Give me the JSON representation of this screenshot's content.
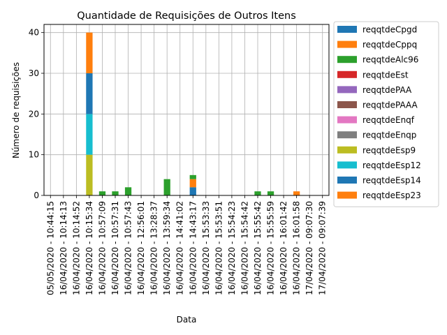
{
  "chart_data": {
    "type": "bar",
    "stacked": true,
    "title": "Quantidade de Requisições de Outros Itens",
    "xlabel": "Data",
    "ylabel": "Número de requisições",
    "ylim": [
      0,
      42
    ],
    "yticks": [
      0,
      10,
      20,
      30,
      40
    ],
    "grid": true,
    "legend_position": "outside-right",
    "categories": [
      "05/05/2020 - 10:44:15",
      "16/04/2020 - 10:14:13",
      "16/04/2020 - 10:14:52",
      "16/04/2020 - 10:15:34",
      "16/04/2020 - 10:57:09",
      "16/04/2020 - 10:57:31",
      "16/04/2020 - 10:57:43",
      "16/04/2020 - 12:56:01",
      "16/04/2020 - 13:28:37",
      "16/04/2020 - 13:59:34",
      "16/04/2020 - 14:41:02",
      "16/04/2020 - 14:43:17",
      "16/04/2020 - 15:53:33",
      "16/04/2020 - 15:53:51",
      "16/04/2020 - 15:54:23",
      "16/04/2020 - 15:54:42",
      "16/04/2020 - 15:55:42",
      "16/04/2020 - 15:55:59",
      "16/04/2020 - 16:01:42",
      "16/04/2020 - 16:01:58",
      "17/04/2020 - 09:07:30",
      "17/04/2020 - 09:07:39"
    ],
    "series": [
      {
        "name": "reqqtdeCpgd",
        "color": "#1f77b4",
        "values": [
          0,
          0,
          0,
          0,
          0,
          0,
          0,
          0,
          0,
          0,
          0,
          2,
          0,
          0,
          0,
          0,
          0,
          0,
          0,
          0,
          0,
          0
        ]
      },
      {
        "name": "reqqtdeCppq",
        "color": "#ff7f0e",
        "values": [
          0,
          0,
          0,
          0,
          0,
          0,
          0,
          0,
          0,
          0,
          0,
          2,
          0,
          0,
          0,
          0,
          0,
          0,
          0,
          1,
          0,
          0
        ]
      },
      {
        "name": "reqqtdeAlc96",
        "color": "#2ca02c",
        "values": [
          0,
          0,
          0,
          0,
          1,
          1,
          2,
          0,
          0,
          4,
          0,
          1,
          0,
          0,
          0,
          0,
          1,
          1,
          0,
          0,
          0,
          0
        ]
      },
      {
        "name": "reqqtdeEst",
        "color": "#d62728",
        "values": [
          0,
          0,
          0,
          0,
          0,
          0,
          0,
          0,
          0,
          0,
          0,
          0,
          0,
          0,
          0,
          0,
          0,
          0,
          0,
          0,
          0,
          0
        ]
      },
      {
        "name": "reqqtdePAA",
        "color": "#9467bd",
        "values": [
          0,
          0,
          0,
          0,
          0,
          0,
          0,
          0,
          0,
          0,
          0,
          0,
          0,
          0,
          0,
          0,
          0,
          0,
          0,
          0,
          0,
          0
        ]
      },
      {
        "name": "reqqtdePAAA",
        "color": "#8c564b",
        "values": [
          0,
          0,
          0,
          0,
          0,
          0,
          0,
          0,
          0,
          0,
          0,
          0,
          0,
          0,
          0,
          0,
          0,
          0,
          0,
          0,
          0,
          0
        ]
      },
      {
        "name": "reqqtdeEnqf",
        "color": "#e377c2",
        "values": [
          0,
          0,
          0,
          0,
          0,
          0,
          0,
          0,
          0,
          0,
          0,
          0,
          0,
          0,
          0,
          0,
          0,
          0,
          0,
          0,
          0,
          0
        ]
      },
      {
        "name": "reqqtdeEnqp",
        "color": "#7f7f7f",
        "values": [
          0,
          0,
          0,
          0,
          0,
          0,
          0,
          0,
          0,
          0,
          0,
          0,
          0,
          0,
          0,
          0,
          0,
          0,
          0,
          0,
          0,
          0
        ]
      },
      {
        "name": "reqqtdeEsp9",
        "color": "#bcbd22",
        "values": [
          0,
          0,
          0,
          10,
          0,
          0,
          0,
          0,
          0,
          0,
          0,
          0,
          0,
          0,
          0,
          0,
          0,
          0,
          0,
          0,
          0,
          0
        ]
      },
      {
        "name": "reqqtdeEsp12",
        "color": "#17becf",
        "values": [
          0,
          0,
          0,
          10,
          0,
          0,
          0,
          0,
          0,
          0,
          0,
          0,
          0,
          0,
          0,
          0,
          0,
          0,
          0,
          0,
          0,
          0
        ]
      },
      {
        "name": "reqqtdeEsp14",
        "color": "#1f77b4",
        "values": [
          0,
          0,
          0,
          10,
          0,
          0,
          0,
          0,
          0,
          0,
          0,
          0,
          0,
          0,
          0,
          0,
          0,
          0,
          0,
          0,
          0,
          0
        ]
      },
      {
        "name": "reqqtdeEsp23",
        "color": "#ff7f0e",
        "values": [
          0,
          0,
          0,
          10,
          0,
          0,
          0,
          0,
          0,
          0,
          0,
          0,
          0,
          0,
          0,
          0,
          0,
          0,
          0,
          0,
          0,
          0
        ]
      }
    ]
  }
}
